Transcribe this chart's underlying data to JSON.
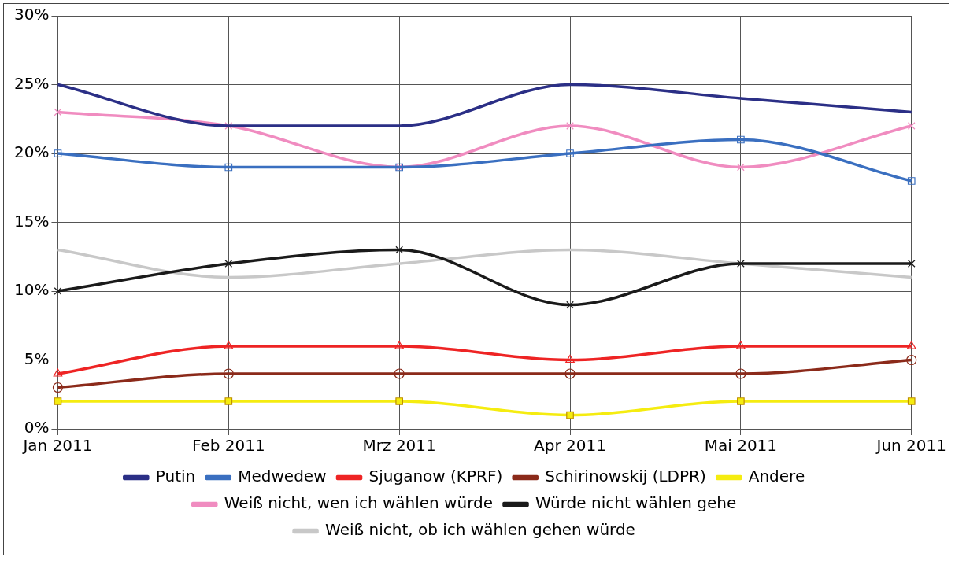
{
  "chart_data": {
    "type": "line",
    "categories": [
      "Jan 2011",
      "Feb 2011",
      "Mrz 2011",
      "Apr 2011",
      "Mai 2011",
      "Jun 2011"
    ],
    "ylim": [
      0,
      30
    ],
    "yticks": [
      {
        "value": 0,
        "label": "0%"
      },
      {
        "value": 5,
        "label": "5%"
      },
      {
        "value": 10,
        "label": "10%"
      },
      {
        "value": 15,
        "label": "15%"
      },
      {
        "value": 20,
        "label": "20%"
      },
      {
        "value": 25,
        "label": "25%"
      },
      {
        "value": 30,
        "label": "30%"
      }
    ],
    "grid": true,
    "legend": "bottom",
    "line_style": "solid",
    "series": [
      {
        "name": "Putin",
        "color": "#2b2f86",
        "marker": "none",
        "values": [
          25,
          22,
          22,
          25,
          24,
          23
        ]
      },
      {
        "name": "Medwedew",
        "color": "#3a6fc0",
        "marker": "square",
        "values": [
          20,
          19,
          19,
          20,
          21,
          18
        ]
      },
      {
        "name": "Sjuganow (KPRF)",
        "color": "#ee2424",
        "marker": "triangle",
        "values": [
          4,
          6,
          6,
          5,
          6,
          6
        ]
      },
      {
        "name": "Schirinowskij (LDPR)",
        "color": "#8b2a1a",
        "marker": "circle",
        "values": [
          3,
          4,
          4,
          4,
          4,
          5
        ]
      },
      {
        "name": "Andere",
        "color": "#f5ec10",
        "marker": "square",
        "values": [
          2,
          2,
          2,
          1,
          2,
          2
        ]
      },
      {
        "name": "Weiß nicht, wen ich wählen würde",
        "color": "#f08cc0",
        "marker": "cross",
        "values": [
          23,
          22,
          19,
          22,
          19,
          22
        ]
      },
      {
        "name": "Würde nicht wählen gehe",
        "color": "#1a1a1a",
        "marker": "cross",
        "values": [
          10,
          12,
          13,
          9,
          12,
          12
        ]
      },
      {
        "name": "Weiß nicht, ob ich wählen gehen würde",
        "color": "#c8c8c8",
        "marker": "none",
        "values": [
          13,
          11,
          12,
          13,
          12,
          11
        ]
      }
    ]
  }
}
